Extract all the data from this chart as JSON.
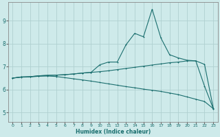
{
  "xlabel": "Humidex (Indice chaleur)",
  "bg_color": "#ceeaea",
  "grid_color": "#b0d0d0",
  "line_color": "#1a6e6e",
  "xlim": [
    -0.5,
    23.5
  ],
  "ylim": [
    4.6,
    9.8
  ],
  "xticks": [
    0,
    1,
    2,
    3,
    4,
    5,
    6,
    7,
    8,
    9,
    10,
    11,
    12,
    13,
    14,
    15,
    16,
    17,
    18,
    19,
    20,
    21,
    22,
    23
  ],
  "yticks": [
    5,
    6,
    7,
    8,
    9
  ],
  "curve_upper_x": [
    0,
    1,
    2,
    3,
    4,
    5,
    6,
    7,
    8,
    9,
    10,
    11,
    12,
    13,
    14,
    15,
    16,
    17,
    18,
    19,
    20,
    21,
    22,
    23
  ],
  "curve_upper_y": [
    6.5,
    6.55,
    6.56,
    6.6,
    6.62,
    6.63,
    6.65,
    6.68,
    6.72,
    6.75,
    6.78,
    6.82,
    6.87,
    6.92,
    6.97,
    7.02,
    7.07,
    7.12,
    7.17,
    7.2,
    7.25,
    7.25,
    7.1,
    5.2
  ],
  "curve_lower_x": [
    0,
    1,
    2,
    3,
    4,
    5,
    6,
    7,
    8,
    9,
    10,
    11,
    12,
    13,
    14,
    15,
    16,
    17,
    18,
    19,
    20,
    21,
    22,
    23
  ],
  "curve_lower_y": [
    6.5,
    6.54,
    6.55,
    6.58,
    6.59,
    6.57,
    6.52,
    6.47,
    6.42,
    6.37,
    6.31,
    6.25,
    6.19,
    6.13,
    6.08,
    6.02,
    5.97,
    5.92,
    5.85,
    5.78,
    5.68,
    5.58,
    5.48,
    5.17
  ],
  "curve_main_x": [
    0,
    1,
    2,
    3,
    4,
    5,
    6,
    7,
    8,
    9,
    10,
    11,
    12,
    13,
    14,
    15,
    16,
    17,
    18,
    19,
    20,
    21,
    22,
    23
  ],
  "curve_main_y": [
    6.5,
    6.55,
    6.56,
    6.6,
    6.62,
    6.63,
    6.65,
    6.68,
    6.72,
    6.75,
    7.08,
    7.2,
    7.2,
    7.95,
    8.45,
    8.3,
    9.5,
    8.25,
    7.52,
    7.38,
    7.28,
    7.25,
    6.15,
    5.17
  ]
}
